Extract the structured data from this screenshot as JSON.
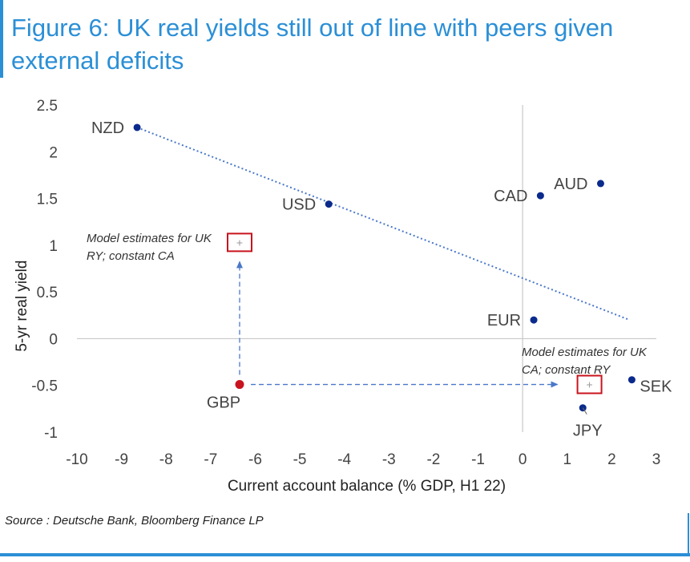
{
  "title": "Figure 6: UK real yields still out of line with peers given external deficits",
  "source": "Source : Deutsche Bank, Bloomberg Finance LP",
  "colors": {
    "accent": "#2b8fd6",
    "point": "#0a2a8c",
    "gbp": "#c8141e",
    "arrow": "#4a78c8",
    "box": "#c8141e"
  },
  "chart_data": {
    "type": "scatter",
    "xlabel": "Current account balance (% GDP, H1 22)",
    "ylabel": "5-yr real yield",
    "xlim": [
      -10,
      3
    ],
    "ylim": [
      -1,
      2.5
    ],
    "xticks": [
      -10,
      -9,
      -8,
      -7,
      -6,
      -5,
      -4,
      -3,
      -2,
      -1,
      0,
      1,
      2,
      3
    ],
    "yticks": [
      -1,
      -0.5,
      0,
      0.5,
      1,
      1.5,
      2,
      2.5
    ],
    "points": [
      {
        "label": "NZD",
        "x": -8.65,
        "y": 2.26,
        "label_pos": "left"
      },
      {
        "label": "USD",
        "x": -4.35,
        "y": 1.44,
        "label_pos": "left"
      },
      {
        "label": "CAD",
        "x": 0.4,
        "y": 1.53,
        "label_pos": "left"
      },
      {
        "label": "AUD",
        "x": 1.75,
        "y": 1.66,
        "label_pos": "left"
      },
      {
        "label": "EUR",
        "x": 0.25,
        "y": 0.2,
        "label_pos": "left"
      },
      {
        "label": "SEK",
        "x": 2.45,
        "y": -0.44,
        "label_pos": "right"
      },
      {
        "label": "JPY",
        "x": 1.35,
        "y": -0.74,
        "label_pos": "below"
      },
      {
        "label": "GBP",
        "x": -6.35,
        "y": -0.49,
        "label_pos": "below",
        "highlight": true
      }
    ],
    "trendline": {
      "x": [
        -8.65,
        2.4
      ],
      "y": [
        2.26,
        0.2
      ],
      "style": "dotted"
    },
    "model_estimates": [
      {
        "x": -6.35,
        "y": 1.03,
        "text_lines": [
          "Model estimates for UK",
          "RY; constant CA"
        ],
        "arrow_from": {
          "x": -6.35,
          "y": -0.49
        }
      },
      {
        "x": 1.5,
        "y": -0.49,
        "text_lines": [
          "Model estimates for UK",
          "CA; constant RY"
        ],
        "arrow_from": {
          "x": -6.35,
          "y": -0.49
        }
      }
    ]
  }
}
